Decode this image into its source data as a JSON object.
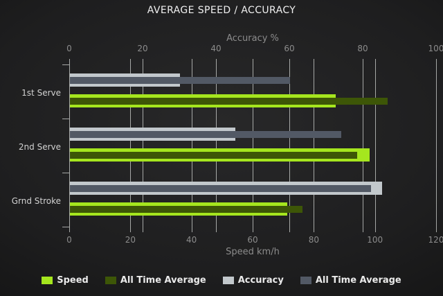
{
  "title": "AVERAGE SPEED / ACCURACY",
  "chart_data": {
    "type": "bar",
    "orientation": "horizontal",
    "title": "AVERAGE SPEED / ACCURACY",
    "categories": [
      "1st Serve",
      "2nd Serve",
      "Grnd Stroke"
    ],
    "series": [
      {
        "name": "Speed",
        "axis": "bottom",
        "style": "thick",
        "color": "#a5e61e",
        "values": [
          87,
          98,
          71
        ]
      },
      {
        "name": "All Time Average",
        "axis": "bottom",
        "style": "thin-overlay",
        "color": "#3d5607",
        "values": [
          104,
          94,
          76
        ]
      },
      {
        "name": "Accuracy",
        "axis": "top",
        "style": "thick",
        "color": "#c2c8cc",
        "values": [
          30,
          45,
          85
        ]
      },
      {
        "name": "All Time Average",
        "axis": "top",
        "style": "thin-overlay",
        "color": "#525965",
        "values": [
          60,
          74,
          82
        ]
      }
    ],
    "axes": {
      "top": {
        "label": "Accuracy %",
        "range": [
          0,
          100
        ],
        "ticks": [
          0,
          20,
          40,
          60,
          80,
          100
        ]
      },
      "bottom": {
        "label": "Speed km/h",
        "range": [
          0,
          120
        ],
        "ticks": [
          0,
          20,
          40,
          60,
          80,
          100,
          120
        ]
      }
    },
    "grid": true,
    "legend_position": "bottom",
    "legend": [
      {
        "label": "Speed",
        "color": "#a5e61e"
      },
      {
        "label": "All Time Average",
        "color": "#3d5607"
      },
      {
        "label": "Accuracy",
        "color": "#c2c8cc"
      },
      {
        "label": "All Time Average",
        "color": "#525965"
      }
    ]
  },
  "colors": {
    "background_center": "#282829",
    "background_edge": "#111111",
    "grid_line": "#cdcfcd",
    "axis_text": "#8c8c8c",
    "category_text": "#d2d2d2",
    "title_text": "#f0f0f0",
    "legend_text": "#eaeaea",
    "speed": "#a5e61e",
    "speed_all_time": "#3d5607",
    "accuracy": "#c2c8cc",
    "accuracy_all_time": "#525965"
  }
}
